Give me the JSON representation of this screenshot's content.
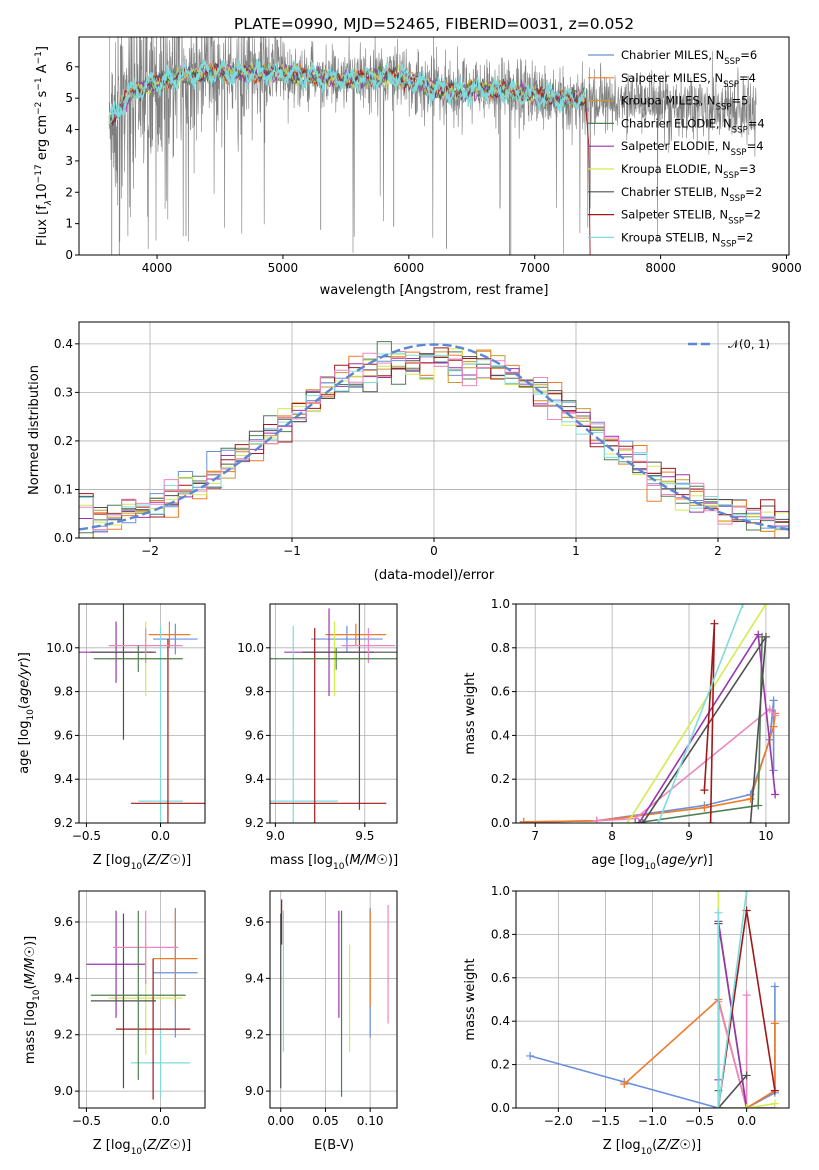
{
  "title": "PLATE=0990, MJD=52465, FIBERID=0031, z=0.052",
  "colors": {
    "Chabrier MILES": "#6a8fdc",
    "Salpeter MILES": "#f07a28",
    "Kroupa MILES": "#c99a2e",
    "Chabrier ELODIE": "#4f7f55",
    "Salpeter ELODIE": "#9a35ad",
    "Kroupa ELODIE": "#d2ec52",
    "Chabrier STELIB": "#505050",
    "Salpeter STELIB": "#a0181a",
    "Kroupa STELIB": "#7fdcdc",
    "pink": "#ec86c2",
    "data": "#7f7f7f",
    "normal": "#5b87d4"
  },
  "chart_data": [
    {
      "id": "spectrum",
      "type": "line",
      "xlabel": "wavelength [Angstrom, rest frame]",
      "ylabel_parts": [
        "Flux [f",
        "λ",
        "10",
        "−17",
        " erg cm",
        "−2",
        " s",
        "−1",
        " A",
        "−1",
        "]"
      ],
      "xlim": [
        3380,
        9020
      ],
      "ylim": [
        0,
        6.95
      ],
      "xticks": [
        "4000",
        "5000",
        "6000",
        "7000",
        "8000",
        "9000"
      ],
      "yticks": [
        "0",
        "1",
        "2",
        "3",
        "4",
        "5",
        "6"
      ],
      "grid": false,
      "legend_position": "top-right",
      "legend": [
        {
          "name": "Chabrier MILES",
          "nssp": "6"
        },
        {
          "name": "Salpeter MILES",
          "nssp": "4"
        },
        {
          "name": "Kroupa MILES",
          "nssp": "5"
        },
        {
          "name": "Chabrier ELODIE",
          "nssp": "4"
        },
        {
          "name": "Salpeter ELODIE",
          "nssp": "4"
        },
        {
          "name": "Kroupa ELODIE",
          "nssp": "3"
        },
        {
          "name": "Chabrier STELIB",
          "nssp": "2"
        },
        {
          "name": "Salpeter STELIB",
          "nssp": "2"
        },
        {
          "name": "Kroupa STELIB",
          "nssp": "2"
        }
      ],
      "continuum": {
        "x": [
          3650,
          3800,
          4000,
          4200,
          4400,
          4600,
          4800,
          5000,
          5200,
          5400,
          5600,
          5800,
          6000,
          6200,
          6400,
          6600,
          6800,
          7000,
          7200,
          7400
        ],
        "y": [
          4.4,
          5.2,
          5.5,
          5.7,
          5.8,
          5.8,
          5.8,
          5.8,
          5.7,
          5.6,
          5.6,
          5.7,
          5.6,
          5.3,
          5.2,
          5.3,
          5.2,
          5.1,
          5.0,
          5.0
        ]
      },
      "model_ends_at": 7400,
      "data_ends_at": 8760
    },
    {
      "id": "residuals",
      "type": "histogram",
      "xlabel": "(data-model)/error",
      "ylabel": "Normed distribution",
      "xlim": [
        -2.5,
        2.5
      ],
      "ylim": [
        0,
        0.445
      ],
      "xticks": [
        "−2",
        "−1",
        "0",
        "1",
        "2"
      ],
      "yticks": [
        "0.0",
        "0.1",
        "0.2",
        "0.3",
        "0.4"
      ],
      "grid": true,
      "legend_position": "top-right",
      "normal_label": "𝒩(0, 1)",
      "bins": 50
    },
    {
      "id": "age-vs-Z",
      "type": "errorbar",
      "xlabel": "Z [log10(Z/Z☉)]",
      "ylabel": "age  [log10(age/yr)]",
      "xlim": [
        -0.55,
        0.3
      ],
      "ylim": [
        9.2,
        10.2
      ],
      "xticks": [
        "−0.5",
        "0.0"
      ],
      "yticks": [
        "9.2",
        "9.4",
        "9.6",
        "9.8",
        "10.0"
      ],
      "points": [
        {
          "c": "Chabrier MILES",
          "x": 0.1,
          "xe": 0.15,
          "y": 10.04,
          "ye": 0.07
        },
        {
          "c": "Salpeter MILES",
          "x": 0.06,
          "xe": 0.14,
          "y": 10.06,
          "ye": 0.06
        },
        {
          "c": "Kroupa ELODIE",
          "x": -0.1,
          "xe": 0.25,
          "y": 9.95,
          "ye": 0.17
        },
        {
          "c": "Salpeter ELODIE",
          "x": -0.3,
          "xe": 0.25,
          "y": 9.98,
          "ye": 0.14
        },
        {
          "c": "Chabrier STELIB",
          "x": -0.25,
          "xe": 0.22,
          "y": 9.98,
          "ye": 0.4
        },
        {
          "c": "Kroupa STELIB",
          "x": 0.0,
          "xe": 0.15,
          "y": 9.3,
          "ye": 0.8
        },
        {
          "c": "Salpeter STELIB",
          "x": 0.05,
          "xe": 0.25,
          "y": 9.29,
          "ye": 0.75
        },
        {
          "c": "pink",
          "x": -0.1,
          "xe": 0.25,
          "y": 10.01,
          "ye": 0.08
        },
        {
          "c": "Chabrier ELODIE",
          "x": -0.15,
          "xe": 0.3,
          "y": 9.95,
          "ye": 0.06
        }
      ]
    },
    {
      "id": "age-vs-mass",
      "type": "errorbar",
      "xlabel": "mass [log10(M/M☉)]",
      "ylabel": "",
      "xlim": [
        8.97,
        9.68
      ],
      "ylim": [
        9.2,
        10.2
      ],
      "xticks": [
        "9.0",
        "9.5"
      ],
      "yticks": [
        "9.2",
        "9.4",
        "9.6",
        "9.8",
        "10.0"
      ],
      "points": [
        {
          "c": "Chabrier MILES",
          "x": 9.4,
          "xe": 0.2,
          "y": 10.04,
          "ye": 0.06
        },
        {
          "c": "Salpeter MILES",
          "x": 9.45,
          "xe": 0.17,
          "y": 10.06,
          "ye": 0.05
        },
        {
          "c": "Kroupa ELODIE",
          "x": 9.33,
          "xe": 0.2,
          "y": 9.95,
          "ye": 0.17
        },
        {
          "c": "Salpeter ELODIE",
          "x": 9.3,
          "xe": 0.25,
          "y": 9.98,
          "ye": 0.2
        },
        {
          "c": "Chabrier STELIB",
          "x": 9.47,
          "xe": 0.32,
          "y": 9.98,
          "ye": 0.72
        },
        {
          "c": "Kroupa STELIB",
          "x": 9.1,
          "xe": 0.25,
          "y": 9.3,
          "ye": 0.8
        },
        {
          "c": "Salpeter STELIB",
          "x": 9.22,
          "xe": 0.4,
          "y": 9.29,
          "ye": 0.8
        },
        {
          "c": "pink",
          "x": 9.52,
          "xe": 0.15,
          "y": 10.01,
          "ye": 0.08
        },
        {
          "c": "Chabrier ELODIE",
          "x": 9.34,
          "xe": 0.38,
          "y": 9.95,
          "ye": 0.05
        }
      ]
    },
    {
      "id": "mass-weight-vs-age",
      "type": "line",
      "xlabel": "age  [log10(age/yr)]",
      "ylabel": "mass weight",
      "xlim": [
        6.75,
        10.3
      ],
      "ylim": [
        0,
        1.0
      ],
      "xticks": [
        "7",
        "8",
        "9",
        "10"
      ],
      "yticks": [
        "0.0",
        "0.2",
        "0.4",
        "0.6",
        "0.8",
        "1.0"
      ],
      "grid": true,
      "series": [
        {
          "c": "Chabrier MILES",
          "x": [
            6.85,
            7.8,
            9.2,
            9.8,
            10.05,
            10.1,
            10.1
          ],
          "y": [
            0.005,
            0.01,
            0.08,
            0.13,
            0.38,
            0.56,
            0.24
          ]
        },
        {
          "c": "Salpeter MILES",
          "x": [
            6.85,
            7.8,
            9.2,
            9.8,
            10.1,
            10.12
          ],
          "y": [
            0.005,
            0.01,
            0.07,
            0.11,
            0.44,
            0.5
          ]
        },
        {
          "c": "pink",
          "x": [
            7.8,
            8.3,
            10.05,
            10.12
          ],
          "y": [
            0.01,
            0.02,
            0.52,
            0.49
          ]
        },
        {
          "c": "Chabrier ELODIE",
          "x": [
            8.3,
            9.9,
            9.95
          ],
          "y": [
            0.0,
            0.08,
            0.85
          ]
        },
        {
          "c": "Salpeter ELODIE",
          "x": [
            8.35,
            9.9,
            10.12
          ],
          "y": [
            0.0,
            0.86,
            0.13
          ]
        },
        {
          "c": "Kroupa ELODIE",
          "x": [
            8.2,
            10.0
          ],
          "y": [
            0.0,
            1.0
          ]
        },
        {
          "c": "Chabrier STELIB",
          "x": [
            8.4,
            10.0,
            9.8
          ],
          "y": [
            0.0,
            0.85,
            0.0
          ]
        },
        {
          "c": "Salpeter STELIB",
          "x": [
            9.2,
            9.33,
            9.28
          ],
          "y": [
            0.15,
            0.91,
            0.0
          ]
        },
        {
          "c": "Kroupa STELIB",
          "x": [
            8.6,
            9.7
          ],
          "y": [
            0.0,
            1.0
          ]
        }
      ]
    },
    {
      "id": "mass-vs-Z",
      "type": "errorbar",
      "xlabel": "Z [log10(Z/Z☉)]",
      "ylabel": "mass [log10(M/M☉)]",
      "xlim": [
        -0.55,
        0.3
      ],
      "ylim": [
        8.94,
        9.71
      ],
      "xticks": [
        "−0.5",
        "0.0"
      ],
      "yticks": [
        "9.0",
        "9.2",
        "9.4",
        "9.6"
      ],
      "points": [
        {
          "c": "Chabrier MILES",
          "x": 0.1,
          "xe": 0.15,
          "y": 9.42,
          "ye": 0.23
        },
        {
          "c": "Salpeter MILES",
          "x": 0.1,
          "xe": 0.15,
          "y": 9.47,
          "ye": 0.17
        },
        {
          "c": "Kroupa ELODIE",
          "x": -0.1,
          "xe": 0.25,
          "y": 9.33,
          "ye": 0.2
        },
        {
          "c": "Salpeter ELODIE",
          "x": -0.3,
          "xe": 0.2,
          "y": 9.45,
          "ye": 0.19
        },
        {
          "c": "Chabrier STELIB",
          "x": -0.25,
          "xe": 0.22,
          "y": 9.32,
          "ye": 0.31
        },
        {
          "c": "Kroupa STELIB",
          "x": 0.0,
          "xe": 0.2,
          "y": 9.1,
          "ye": 0.12
        },
        {
          "c": "Salpeter STELIB",
          "x": -0.05,
          "xe": 0.25,
          "y": 9.22,
          "ye": 0.25
        },
        {
          "c": "pink",
          "x": -0.1,
          "xe": 0.22,
          "y": 9.51,
          "ye": 0.13
        },
        {
          "c": "Chabrier ELODIE",
          "x": -0.15,
          "xe": 0.32,
          "y": 9.34,
          "ye": 0.3
        }
      ]
    },
    {
      "id": "mass-vs-EBV",
      "type": "errorbar",
      "xlabel": "E(B-V)",
      "ylabel": "",
      "xlim": [
        -0.012,
        0.13
      ],
      "ylim": [
        8.94,
        9.71
      ],
      "xticks": [
        "0.00",
        "0.05",
        "0.10"
      ],
      "yticks": [
        "9.0",
        "9.2",
        "9.4",
        "9.6"
      ],
      "points": [
        {
          "c": "Chabrier MILES",
          "x": 0.1,
          "xe": 0,
          "y": 9.42,
          "ye": 0.23
        },
        {
          "c": "Salpeter MILES",
          "x": 0.1,
          "xe": 0,
          "y": 9.47,
          "ye": 0.17
        },
        {
          "c": "Kroupa ELODIE",
          "x": 0.077,
          "xe": 0,
          "y": 9.33,
          "ye": 0.19
        },
        {
          "c": "Salpeter ELODIE",
          "x": 0.065,
          "xe": 0,
          "y": 9.45,
          "ye": 0.19
        },
        {
          "c": "Chabrier STELIB",
          "x": 0.0,
          "xe": 0,
          "y": 9.32,
          "ye": 0.31
        },
        {
          "c": "Kroupa STELIB",
          "x": 0.003,
          "xe": 0,
          "y": 9.39,
          "ye": 0.25
        },
        {
          "c": "Salpeter STELIB",
          "x": 0.001,
          "xe": 0,
          "y": 9.6,
          "ye": 0.08
        },
        {
          "c": "pink",
          "x": 0.12,
          "xe": 0,
          "y": 9.45,
          "ye": 0.21
        },
        {
          "c": "Chabrier ELODIE",
          "x": 0.068,
          "xe": 0,
          "y": 9.31,
          "ye": 0.33
        }
      ]
    },
    {
      "id": "mass-weight-vs-Z",
      "type": "line",
      "xlabel": "Z [log10(Z/Z☉)]",
      "ylabel": "mass weight",
      "xlim": [
        -2.45,
        0.45
      ],
      "ylim": [
        0,
        1.0
      ],
      "xticks": [
        "−2.0",
        "−1.5",
        "−1.0",
        "−0.5",
        "0.0"
      ],
      "yticks": [
        "0.0",
        "0.2",
        "0.4",
        "0.6",
        "0.8",
        "1.0"
      ],
      "grid": true,
      "series": [
        {
          "c": "Chabrier MILES",
          "x": [
            -2.3,
            -1.3,
            -0.3,
            0.0,
            0.3,
            0.3
          ],
          "y": [
            0.24,
            0.12,
            0.0,
            0.0,
            0.07,
            0.56
          ]
        },
        {
          "c": "Salpeter MILES",
          "x": [
            -1.3,
            -0.3,
            0.0,
            0.3,
            0.3
          ],
          "y": [
            0.11,
            0.5,
            0.0,
            0.08,
            0.39
          ]
        },
        {
          "c": "pink",
          "x": [
            -0.3,
            0.0,
            0.0
          ],
          "y": [
            0.49,
            0.0,
            0.52
          ]
        },
        {
          "c": "Chabrier ELODIE",
          "x": [
            -0.3,
            -0.3,
            0.0
          ],
          "y": [
            0.08,
            0.85,
            0.0
          ]
        },
        {
          "c": "Salpeter ELODIE",
          "x": [
            -0.3,
            -0.3,
            0.0,
            0.3
          ],
          "y": [
            0.13,
            0.86,
            0.0,
            0.0
          ]
        },
        {
          "c": "Kroupa ELODIE",
          "x": [
            -0.3,
            -0.3,
            0.0,
            0.3
          ],
          "y": [
            1.0,
            0.0,
            0.0,
            0.02
          ]
        },
        {
          "c": "Chabrier STELIB",
          "x": [
            -0.3,
            -0.3,
            0.0
          ],
          "y": [
            0.85,
            0.0,
            0.15
          ]
        },
        {
          "c": "Salpeter STELIB",
          "x": [
            -0.3,
            0.0,
            0.3
          ],
          "y": [
            0.0,
            0.91,
            0.08
          ]
        },
        {
          "c": "Kroupa STELIB",
          "x": [
            -0.3,
            -0.3,
            0.0
          ],
          "y": [
            0.9,
            0.0,
            1.0
          ]
        }
      ]
    }
  ]
}
